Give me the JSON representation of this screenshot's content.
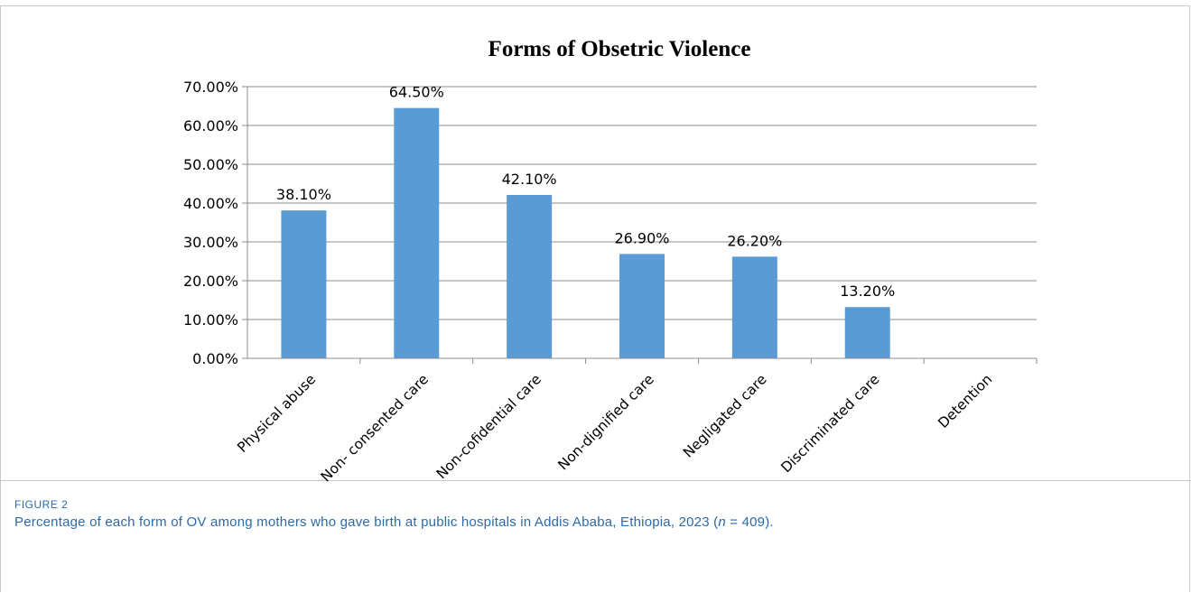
{
  "figure": {
    "label": "FIGURE 2",
    "caption_before": "Percentage of each form of OV among mothers who gave birth at public hospitals in Addis Ababa, Ethiopia, 2023 (",
    "caption_var": "n",
    "caption_after": " = 409)."
  },
  "chart_data": {
    "type": "bar",
    "title": "Forms of Obsetric Violence",
    "xlabel": "",
    "ylabel": "",
    "categories": [
      "Physical abuse",
      "Non- consented care",
      "Non-cofidential care",
      "Non-dignified care",
      "Negligated care",
      "Discriminated care",
      "Detention"
    ],
    "values": [
      38.1,
      64.5,
      42.1,
      26.9,
      26.2,
      13.2,
      0
    ],
    "data_labels": [
      "38.10%",
      "64.50%",
      "42.10%",
      "26.90%",
      "26.20%",
      "13.20%",
      ""
    ],
    "ylim": [
      0,
      70
    ],
    "yticks": [
      0,
      10,
      20,
      30,
      40,
      50,
      60,
      70
    ],
    "ytick_labels": [
      "0.00%",
      "10.00%",
      "20.00%",
      "30.00%",
      "40.00%",
      "50.00%",
      "60.00%",
      "70.00%"
    ],
    "grid": true,
    "bar_color": "#5b9bd5"
  }
}
